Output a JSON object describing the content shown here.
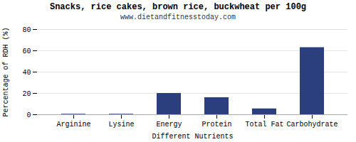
{
  "chart_data": {
    "type": "bar",
    "title": "Snacks, rice cakes, brown rice, buckwheat per 100g",
    "subtitle": "www.dietandfitnesstoday.com",
    "xlabel": "Different Nutrients",
    "ylabel": "Percentage of RDH (%)",
    "categories": [
      "Arginine",
      "Lysine",
      "Energy",
      "Protein",
      "Total Fat",
      "Carbohydrate"
    ],
    "values": [
      0.5,
      0.5,
      20.0,
      16.0,
      5.5,
      63.0
    ],
    "color": "#2b3f7e",
    "ylim": [
      0,
      80
    ],
    "yticks": [
      0,
      20,
      40,
      60,
      80
    ],
    "grid": true
  }
}
